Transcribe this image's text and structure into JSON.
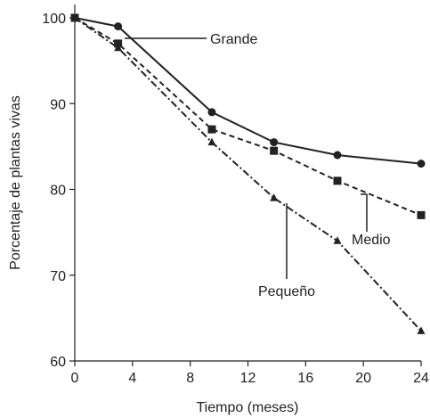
{
  "chart_data": {
    "type": "line",
    "xlabel": "Tiempo (meses)",
    "ylabel": "Porcentaje de plantas vivas",
    "xlim": [
      0,
      24
    ],
    "ylim": [
      60,
      100
    ],
    "xticks": [
      0,
      4,
      8,
      12,
      16,
      20,
      24
    ],
    "yticks": [
      60,
      70,
      80,
      90,
      100
    ],
    "grid": false,
    "series": [
      {
        "name": "Grande",
        "line_style": "solid",
        "marker": "circle",
        "x": [
          0,
          3,
          9.5,
          13.8,
          18.2,
          24
        ],
        "y": [
          100,
          99,
          89,
          85.5,
          84,
          83
        ]
      },
      {
        "name": "Medio",
        "line_style": "dashed",
        "marker": "square",
        "x": [
          0,
          3,
          9.5,
          13.8,
          18.2,
          24
        ],
        "y": [
          100,
          97,
          87,
          84.5,
          81,
          77
        ]
      },
      {
        "name": "Pequeño",
        "line_style": "dashdot",
        "marker": "triangle",
        "x": [
          0,
          3,
          9.5,
          13.8,
          18.2,
          24
        ],
        "y": [
          100,
          96.5,
          85.5,
          79,
          74,
          63.5
        ]
      }
    ]
  }
}
